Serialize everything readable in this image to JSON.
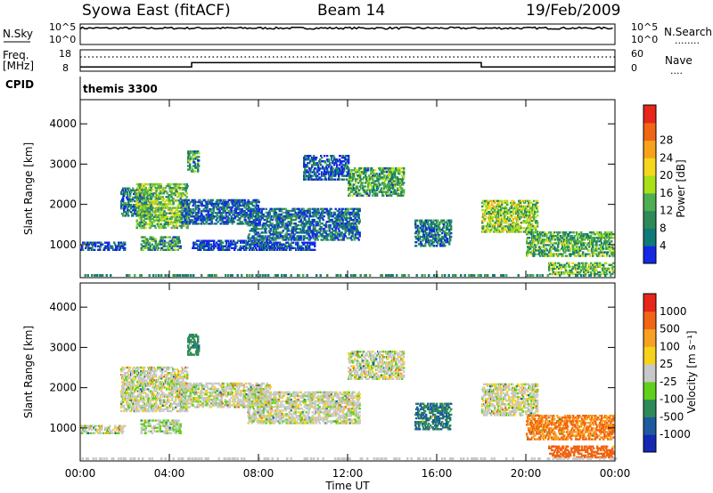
{
  "header": {
    "station": "Syowa East (fitACF)",
    "beam": "Beam 14",
    "date": "19/Feb/2009"
  },
  "status_panels": {
    "nsky_label": "N.Sky",
    "nsearch_label": "N.Search",
    "nsearch_line": "........",
    "noise_ticks_left": [
      "10^5",
      "10^0"
    ],
    "noise_ticks_right": [
      "10^5",
      "10^0"
    ],
    "freq_label_1": "Freq.",
    "freq_label_2": "[MHz]",
    "freq_ticks": [
      "18",
      "8"
    ],
    "nave_label": "Nave",
    "nave_line": "....",
    "nave_ticks": [
      "60",
      "0"
    ],
    "cpid_label": "CPID",
    "cpid_value": "themis 3300"
  },
  "chart_data": [
    {
      "type": "heatmap",
      "title": "",
      "xlabel": "",
      "ylabel": "Slant Range [km]",
      "ylim": [
        180,
        4600
      ],
      "xlim": [
        "00:00",
        "24:00"
      ],
      "yticks": [
        "1000",
        "2000",
        "3000",
        "4000"
      ],
      "colorbar": {
        "label": "Power [dB]",
        "ticks": [
          "4",
          "8",
          "12",
          "16",
          "20",
          "24",
          "28"
        ],
        "colors": [
          "#1428e6",
          "#0f7a78",
          "#2e8b57",
          "#4fae4f",
          "#a8e01a",
          "#f6d71e",
          "#f8a21b",
          "#f26514",
          "#e8251a"
        ]
      },
      "echo_regions": [
        {
          "t0": 0.0,
          "t1": 2.0,
          "r0": 850,
          "r1": 1050,
          "db": 6
        },
        {
          "t0": 1.8,
          "t1": 3.2,
          "r0": 1700,
          "r1": 2400,
          "db": 10
        },
        {
          "t0": 2.5,
          "t1": 4.8,
          "r0": 1400,
          "r1": 2500,
          "db": 18
        },
        {
          "t0": 2.7,
          "t1": 4.5,
          "r0": 850,
          "r1": 1200,
          "db": 14
        },
        {
          "t0": 4.8,
          "t1": 5.3,
          "r0": 2800,
          "r1": 3300,
          "db": 12
        },
        {
          "t0": 4.5,
          "t1": 8.0,
          "r0": 1500,
          "r1": 2100,
          "db": 8
        },
        {
          "t0": 5.0,
          "t1": 8.5,
          "r0": 850,
          "r1": 1100,
          "db": 6
        },
        {
          "t0": 7.5,
          "t1": 12.5,
          "r0": 1100,
          "r1": 1900,
          "db": 9
        },
        {
          "t0": 8.0,
          "t1": 10.5,
          "r0": 850,
          "r1": 1050,
          "db": 6
        },
        {
          "t0": 10.0,
          "t1": 12.0,
          "r0": 2600,
          "r1": 3200,
          "db": 7
        },
        {
          "t0": 12.0,
          "t1": 14.5,
          "r0": 2200,
          "r1": 2900,
          "db": 15
        },
        {
          "t0": 15.0,
          "t1": 16.6,
          "r0": 950,
          "r1": 1600,
          "db": 10
        },
        {
          "t0": 18.0,
          "t1": 20.5,
          "r0": 1300,
          "r1": 2100,
          "db": 20
        },
        {
          "t0": 20.0,
          "t1": 23.9,
          "r0": 700,
          "r1": 1300,
          "db": 16
        },
        {
          "t0": 21.0,
          "t1": 23.9,
          "r0": 250,
          "r1": 550,
          "db": 18
        }
      ]
    },
    {
      "type": "heatmap",
      "title": "",
      "xlabel": "Time UT",
      "ylabel": "Slant Range [km]",
      "ylim": [
        180,
        4600
      ],
      "xlim": [
        "00:00",
        "24:00"
      ],
      "xticks": [
        "00:00",
        "04:00",
        "08:00",
        "12:00",
        "16:00",
        "20:00",
        "00:00"
      ],
      "yticks": [
        "1000",
        "2000",
        "3000",
        "4000"
      ],
      "colorbar": {
        "label": "Velocity [m s⁻¹]",
        "ticks": [
          "1000",
          "500",
          "100",
          "25",
          "-25",
          "-100",
          "-500",
          "-1000"
        ],
        "colors": [
          "#1428b4",
          "#1f5aa0",
          "#2e8b57",
          "#5fd11a",
          "#c8c8c8",
          "#f7d21a",
          "#f8a020",
          "#f26514",
          "#e8251a"
        ]
      },
      "echo_regions": [
        {
          "t0": 0.0,
          "t1": 2.0,
          "r0": 850,
          "r1": 1050,
          "vel": 0
        },
        {
          "t0": 1.8,
          "t1": 4.8,
          "r0": 1400,
          "r1": 2500,
          "vel": 0
        },
        {
          "t0": 2.7,
          "t1": 4.5,
          "r0": 850,
          "r1": 1200,
          "vel": 20
        },
        {
          "t0": 4.8,
          "t1": 5.3,
          "r0": 2800,
          "r1": 3300,
          "vel": 150
        },
        {
          "t0": 4.5,
          "t1": 8.5,
          "r0": 1500,
          "r1": 2100,
          "vel": 0
        },
        {
          "t0": 7.5,
          "t1": 12.5,
          "r0": 1100,
          "r1": 1900,
          "vel": 0
        },
        {
          "t0": 12.0,
          "t1": 14.5,
          "r0": 2200,
          "r1": 2900,
          "vel": 0
        },
        {
          "t0": 15.0,
          "t1": 16.6,
          "r0": 950,
          "r1": 1600,
          "vel": 300
        },
        {
          "t0": 18.0,
          "t1": 20.5,
          "r0": 1300,
          "r1": 2100,
          "vel": 0
        },
        {
          "t0": 20.0,
          "t1": 23.9,
          "r0": 700,
          "r1": 1300,
          "vel": -300
        },
        {
          "t0": 21.0,
          "t1": 23.9,
          "r0": 250,
          "r1": 550,
          "vel": -500
        }
      ]
    },
    {
      "type": "line",
      "title": "",
      "series_freq": [
        {
          "t": 0.0,
          "mhz": 10
        },
        {
          "t": 5.0,
          "mhz": 10
        },
        {
          "t": 5.0,
          "mhz": 12
        },
        {
          "t": 18.0,
          "mhz": 12
        },
        {
          "t": 18.0,
          "mhz": 10
        },
        {
          "t": 24.0,
          "mhz": 10
        }
      ],
      "nave_level": 40,
      "noise_level_log": 4
    }
  ]
}
